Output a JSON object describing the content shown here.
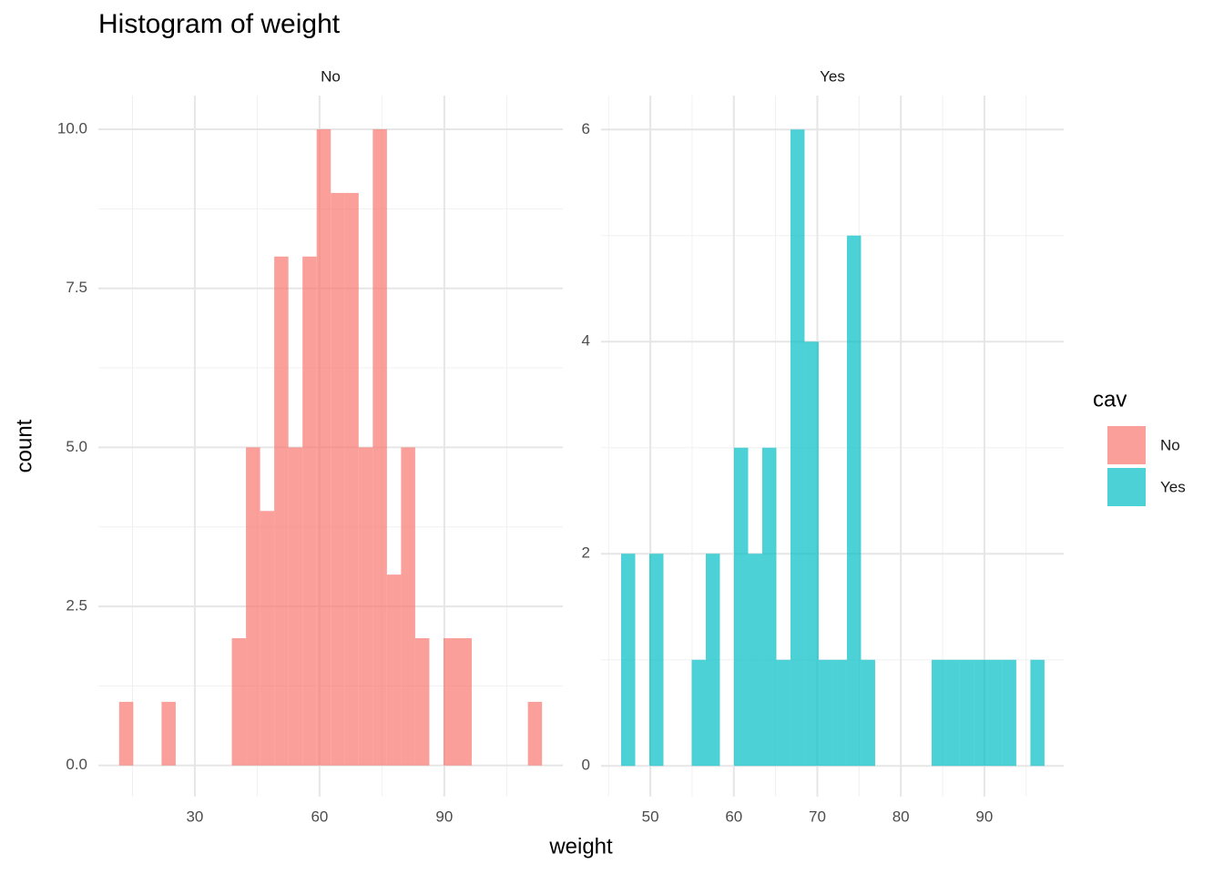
{
  "title": "Histogram of weight",
  "x_label": "weight",
  "y_label": "count",
  "legend_title": "cav",
  "chart_data": [
    {
      "type": "histogram",
      "subtitle": "No",
      "bins": [
        11.8,
        15.2,
        18.6,
        22.0,
        25.4,
        28.8,
        32.1,
        35.5,
        38.9,
        42.3,
        45.7,
        49.1,
        52.5,
        55.9,
        59.3,
        62.7,
        66.0,
        69.4,
        72.8,
        76.2,
        79.6,
        83.0,
        86.4,
        89.8,
        93.2,
        96.6,
        99.9,
        103.3,
        106.7,
        110.1,
        113.5
      ],
      "series": [
        {
          "name": "No",
          "color": "#f8766d",
          "opacity": 0.7,
          "values": [
            1,
            0,
            0,
            1,
            0,
            0,
            0,
            0,
            2,
            5,
            4,
            8,
            5,
            8,
            10,
            9,
            9,
            5,
            10,
            3,
            5,
            2,
            0,
            2,
            2,
            0,
            0,
            0,
            0,
            1
          ]
        }
      ],
      "xlim": [
        6.8,
        118.5
      ],
      "ylim": [
        -0.49,
        10.53
      ],
      "xticks": [
        30,
        60,
        90
      ],
      "yticks": [
        {
          "value": 0,
          "label": "0.0"
        },
        {
          "value": 2.5,
          "label": "2.5"
        },
        {
          "value": 5,
          "label": "5.0"
        },
        {
          "value": 7.5,
          "label": "7.5"
        },
        {
          "value": 10,
          "label": "10.0"
        }
      ],
      "grid": true
    },
    {
      "type": "histogram",
      "subtitle": "Yes",
      "bins": [
        46.5,
        48.19,
        49.88,
        51.57,
        53.26,
        54.95,
        56.64,
        58.33,
        60.02,
        61.71,
        63.4,
        65.09,
        66.78,
        68.47,
        70.16,
        71.85,
        73.54,
        75.23,
        76.92,
        78.61,
        80.3,
        81.99,
        83.68,
        85.37,
        87.06,
        88.75,
        90.44,
        92.13,
        93.82,
        95.51,
        97.2
      ],
      "series": [
        {
          "name": "Yes",
          "color": "#00bfc4",
          "opacity": 0.7,
          "values": [
            2,
            0,
            2,
            0,
            0,
            1,
            2,
            0,
            3,
            2,
            3,
            1,
            6,
            4,
            1,
            1,
            5,
            1,
            0,
            0,
            0,
            0,
            1,
            1,
            1,
            1,
            1,
            1,
            0,
            1
          ]
        }
      ],
      "xlim": [
        44.1,
        99.5
      ],
      "ylim": [
        -0.29,
        6.32
      ],
      "xticks": [
        50,
        60,
        70,
        80,
        90
      ],
      "yticks": [
        0,
        2,
        4,
        6
      ],
      "grid": true
    }
  ]
}
